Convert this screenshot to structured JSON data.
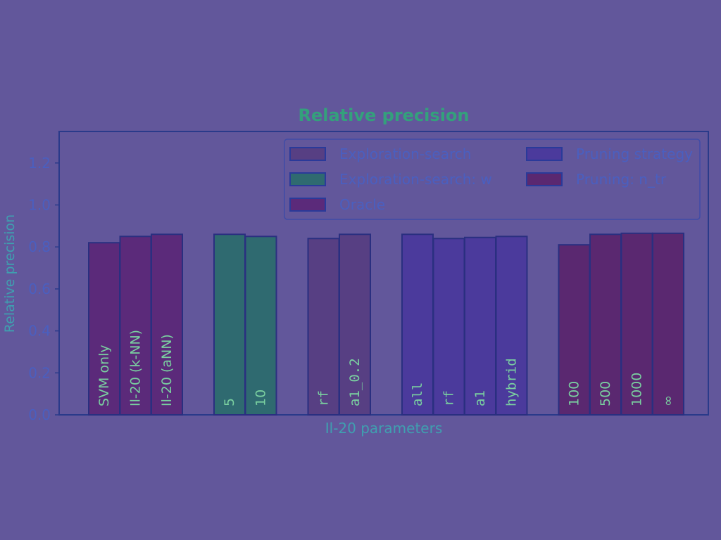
{
  "chart_data": {
    "type": "bar",
    "title": "Relative precision",
    "xlabel": "Il-20 parameters",
    "ylabel": "Relative precision",
    "ylim": [
      0,
      1.35
    ],
    "yticks": [
      0.0,
      0.2,
      0.4,
      0.6,
      0.8,
      1.0,
      1.2
    ],
    "grid": false,
    "legend_position": "top-right",
    "series": [
      {
        "name": "Oracle",
        "color": "#5b2a7a",
        "monospace_labels": false,
        "categories": [
          "SVM only",
          "Il-20 (k-NN)",
          "Il-20 (aNN)"
        ],
        "values": [
          0.82,
          0.85,
          0.86
        ]
      },
      {
        "name": "Exploration-search: w",
        "color": "#2f6a70",
        "monospace_labels": false,
        "categories": [
          "5",
          "10"
        ],
        "values": [
          0.86,
          0.85
        ]
      },
      {
        "name": "Exploration-search",
        "color": "#573f83",
        "monospace_labels": true,
        "categories": [
          "rf",
          "a1_0.2"
        ],
        "values": [
          0.84,
          0.86
        ]
      },
      {
        "name": "Pruning strategy",
        "color": "#4b3a9c",
        "monospace_labels": true,
        "categories": [
          "all",
          "rf",
          "a1",
          "hybrid"
        ],
        "values": [
          0.86,
          0.84,
          0.845,
          0.85
        ]
      },
      {
        "name": "Pruning: n_tr",
        "color": "#5a2870",
        "monospace_labels": false,
        "categories": [
          "100",
          "500",
          "1000",
          "∞"
        ],
        "values": [
          0.81,
          0.86,
          0.865,
          0.865
        ]
      }
    ],
    "legend": [
      {
        "name": "Exploration-search",
        "color": "#573f83"
      },
      {
        "name": "Pruning strategy",
        "color": "#4b3a9c"
      },
      {
        "name": "Exploration-search: w",
        "color": "#2f6a70"
      },
      {
        "name": "Pruning: n_tr",
        "color": "#5a2870"
      },
      {
        "name": "Oracle",
        "color": "#5b2a7a"
      }
    ],
    "colors": {
      "background": "#62579b",
      "axes": "#2a3a8a",
      "text": "#4a5fc0",
      "title": "#34a07c",
      "xlabel": "#3fa0b0"
    }
  }
}
